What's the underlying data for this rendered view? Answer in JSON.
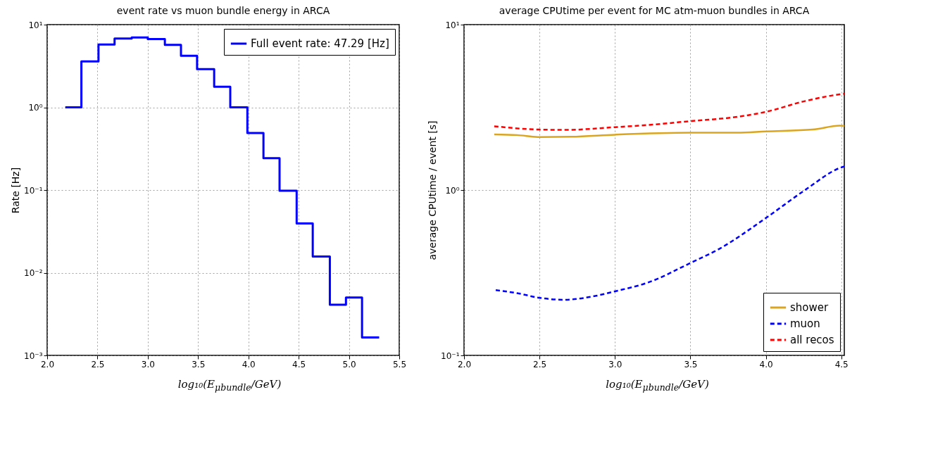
{
  "chart_data": [
    {
      "type": "histogram",
      "title": "event rate vs muon bundle energy in ARCA",
      "xlabel": "log₁₀(E$_{μbundle}$/GeV)",
      "ylabel": "Rate [Hz]",
      "bins": [
        2.18,
        2.34,
        2.51,
        2.67,
        2.84,
        3.0,
        3.17,
        3.33,
        3.49,
        3.66,
        3.82,
        3.99,
        4.15,
        4.31,
        4.48,
        4.64,
        4.81,
        4.97,
        5.13,
        5.3
      ],
      "series": [
        {
          "name": "Full event rate: 47.29 [Hz]",
          "color": "#0000ff",
          "values": [
            1.0,
            3.6,
            5.75,
            6.8,
            7.0,
            6.7,
            5.7,
            4.2,
            2.9,
            1.77,
            1.0,
            0.49,
            0.243,
            0.098,
            0.0395,
            0.0157,
            0.0041,
            0.005,
            0.00165
          ]
        }
      ],
      "log": "y",
      "xlim": [
        2.0,
        5.5
      ],
      "ylim": [
        0.001,
        10
      ],
      "xticks": [
        {
          "value": 2,
          "label": "2.0"
        },
        2.5,
        {
          "value": 3,
          "label": "3.0"
        },
        3.5,
        {
          "value": 4,
          "label": "4.0"
        },
        4.5,
        {
          "value": 5,
          "label": "5.0"
        },
        5.5
      ],
      "yticks": [
        {
          "value": 0.001,
          "label": "10⁻³"
        },
        {
          "value": 0.01,
          "label": "10⁻²"
        },
        {
          "value": 0.1,
          "label": "10⁻¹"
        },
        {
          "value": 1,
          "label": "10⁰"
        },
        {
          "value": 10,
          "label": "10¹"
        }
      ],
      "grid": true,
      "legend": "top right"
    },
    {
      "type": "line",
      "title": "average CPUtime per event for MC atm-muon bundles in ARCA",
      "xlabel": "log₁₀(E$_{μbundle}$/GeV)",
      "ylabel": "average CPUtime / event [s]",
      "series": [
        {
          "name": "shower",
          "color": "#daa520",
          "line_style": "solid",
          "x": [
            2.2,
            2.35,
            2.5,
            2.71,
            3.0,
            3.5,
            3.81,
            4.0,
            4.31,
            4.49,
            4.52
          ],
          "values": [
            2.17,
            2.15,
            2.09,
            2.1,
            2.16,
            2.22,
            2.22,
            2.26,
            2.32,
            2.45,
            2.44
          ]
        },
        {
          "name": "muon",
          "color": "#0000ff",
          "line_style": "dashed",
          "x": [
            2.21,
            2.35,
            2.5,
            2.66,
            2.85,
            3.0,
            3.22,
            3.5,
            3.69,
            4.0,
            4.26,
            4.49,
            4.52
          ],
          "values": [
            0.248,
            0.238,
            0.223,
            0.217,
            0.227,
            0.244,
            0.276,
            0.362,
            0.44,
            0.677,
            1.0,
            1.36,
            1.39
          ]
        },
        {
          "name": "all recos",
          "color": "#ff0000",
          "line_style": "dashed",
          "x": [
            2.2,
            2.5,
            2.68,
            3.0,
            3.24,
            3.5,
            3.81,
            4.0,
            4.26,
            4.49,
            4.52
          ],
          "values": [
            2.43,
            2.32,
            2.31,
            2.4,
            2.48,
            2.61,
            2.77,
            2.97,
            3.45,
            3.79,
            3.82
          ]
        }
      ],
      "log": "y",
      "xlim": [
        2.0,
        4.52
      ],
      "ylim": [
        0.1,
        10
      ],
      "xticks": [
        {
          "value": 2,
          "label": "2.0"
        },
        2.5,
        {
          "value": 3,
          "label": "3.0"
        },
        3.5,
        {
          "value": 4,
          "label": "4.0"
        },
        4.5
      ],
      "yticks": [
        {
          "value": 0.1,
          "label": "10⁻¹"
        },
        {
          "value": 1,
          "label": "10⁰"
        },
        {
          "value": 10,
          "label": "10¹"
        }
      ],
      "grid": true,
      "legend": "bottom right"
    }
  ]
}
